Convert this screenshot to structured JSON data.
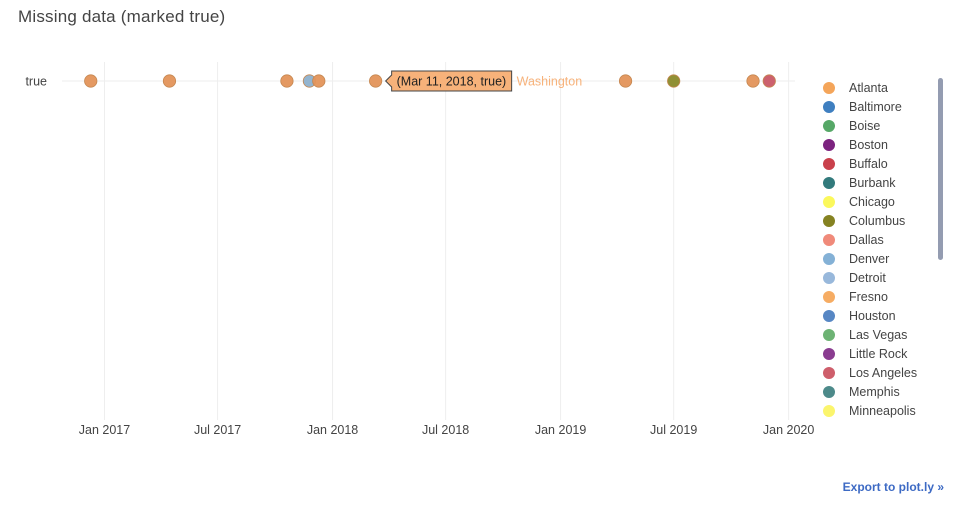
{
  "chart_data": {
    "type": "scatter",
    "title": "Missing data (marked true)",
    "xlabel": "",
    "ylabel": "",
    "y_category": "true",
    "x_range": [
      "2016-10-25",
      "2020-02-01"
    ],
    "x_ticks": [
      {
        "date": "2017-01-01",
        "label": "Jan 2017"
      },
      {
        "date": "2017-07-01",
        "label": "Jul 2017"
      },
      {
        "date": "2018-01-01",
        "label": "Jan 2018"
      },
      {
        "date": "2018-07-01",
        "label": "Jul 2018"
      },
      {
        "date": "2019-01-01",
        "label": "Jan 2019"
      },
      {
        "date": "2019-07-01",
        "label": "Jul 2019"
      },
      {
        "date": "2020-01-01",
        "label": "Jan 2020"
      }
    ],
    "grid": true,
    "legend_position": "right",
    "points": [
      {
        "date": "2016-12-10",
        "color": "#E3935A"
      },
      {
        "date": "2017-04-15",
        "color": "#E3935A"
      },
      {
        "date": "2017-10-20",
        "color": "#E3935A"
      },
      {
        "date": "2017-11-25",
        "color": "#8DB0CC"
      },
      {
        "date": "2017-12-10",
        "color": "#E3935A"
      },
      {
        "date": "2018-03-11",
        "color": "#E3935A"
      },
      {
        "date": "2019-04-15",
        "color": "#E3935A"
      },
      {
        "date": "2019-07-01",
        "color": "#8A8A2A"
      },
      {
        "date": "2019-11-05",
        "color": "#E3935A"
      },
      {
        "date": "2019-12-01",
        "color": "#C95866"
      }
    ],
    "hover": {
      "date": "2018-03-11",
      "text": "(Mar 11, 2018, true)",
      "series": "Washington",
      "color": "#F7B27A"
    },
    "series": [
      {
        "name": "Atlanta",
        "color": "#F4A55A"
      },
      {
        "name": "Baltimore",
        "color": "#3F7FC0"
      },
      {
        "name": "Boise",
        "color": "#56A867"
      },
      {
        "name": "Boston",
        "color": "#7C237F"
      },
      {
        "name": "Buffalo",
        "color": "#C9404B"
      },
      {
        "name": "Burbank",
        "color": "#327A7C"
      },
      {
        "name": "Chicago",
        "color": "#FBF85C"
      },
      {
        "name": "Columbus",
        "color": "#858221"
      },
      {
        "name": "Dallas",
        "color": "#F08A7A"
      },
      {
        "name": "Denver",
        "color": "#84B1D6"
      },
      {
        "name": "Detroit",
        "color": "#98B8DB"
      },
      {
        "name": "Fresno",
        "color": "#F6AC63"
      },
      {
        "name": "Houston",
        "color": "#5787C4"
      },
      {
        "name": "Las Vegas",
        "color": "#6DB374"
      },
      {
        "name": "Little Rock",
        "color": "#8A3C90"
      },
      {
        "name": "Los Angeles",
        "color": "#CE5E6B"
      },
      {
        "name": "Memphis",
        "color": "#4D8A8A"
      },
      {
        "name": "Minneapolis",
        "color": "#FBF56D"
      }
    ]
  },
  "export_link": "Export to plot.ly »"
}
